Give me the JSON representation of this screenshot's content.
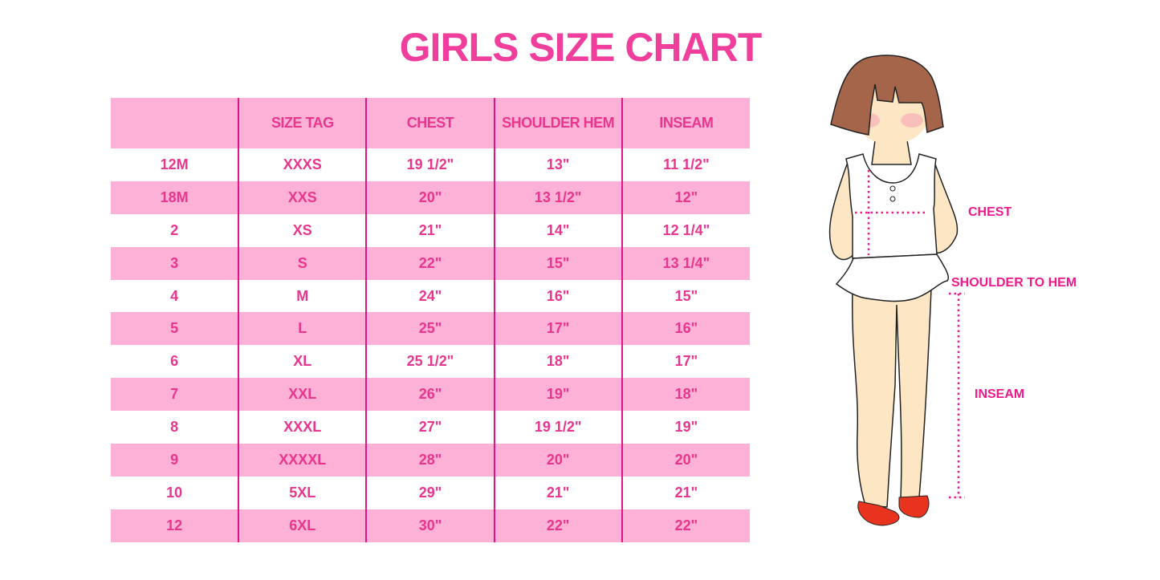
{
  "title": "GIRLS SIZE CHART",
  "table": {
    "headers": [
      "",
      "SIZE TAG",
      "CHEST",
      "SHOULDER HEM",
      "INSEAM"
    ],
    "rows": [
      [
        "12M",
        "XXXS",
        "19 1/2\"",
        "13\"",
        "11 1/2\""
      ],
      [
        "18M",
        "XXS",
        "20\"",
        "13 1/2\"",
        "12\""
      ],
      [
        "2",
        "XS",
        "21\"",
        "14\"",
        "12 1/4\""
      ],
      [
        "3",
        "S",
        "22\"",
        "15\"",
        "13 1/4\""
      ],
      [
        "4",
        "M",
        "24\"",
        "16\"",
        "15\""
      ],
      [
        "5",
        "L",
        "25\"",
        "17\"",
        "16\""
      ],
      [
        "6",
        "XL",
        "25 1/2\"",
        "18\"",
        "17\""
      ],
      [
        "7",
        "XXL",
        "26\"",
        "19\"",
        "18\""
      ],
      [
        "8",
        "XXXL",
        "27\"",
        "19 1/2\"",
        "19\""
      ],
      [
        "9",
        "XXXXL",
        "28\"",
        "20\"",
        "20\""
      ],
      [
        "10",
        "5XL",
        "29\"",
        "21\"",
        "21\""
      ],
      [
        "12",
        "6XL",
        "30\"",
        "22\"",
        "22\""
      ]
    ]
  },
  "figure": {
    "labels": {
      "chest": "CHEST",
      "shoulder_to_hem": "SHOULDER TO HEM",
      "inseam": "INSEAM"
    }
  },
  "colors": {
    "accent": "#ef3e9c",
    "row_pink": "#fdb1d6",
    "divider": "#e0148a",
    "hair": "#a5654a",
    "skin": "#fde6c4",
    "shoes": "#e8341f"
  }
}
